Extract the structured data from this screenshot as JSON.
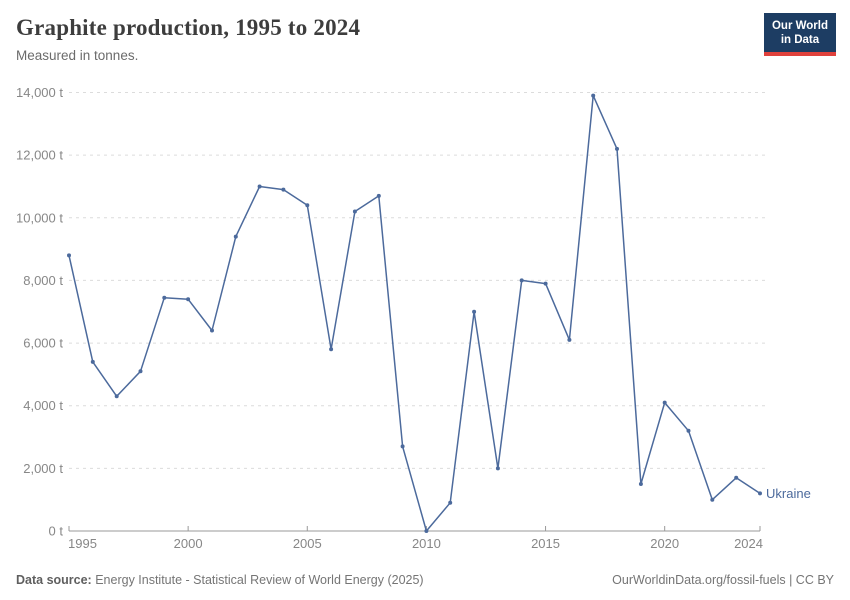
{
  "header": {
    "title": "Graphite production, 1995 to 2024",
    "subtitle": "Measured in tonnes.",
    "logo": {
      "line1": "Our World",
      "line2": "in Data"
    }
  },
  "chart_data": {
    "type": "line",
    "title": "Graphite production, 1995 to 2024",
    "ylabel": "tonnes",
    "xlabel": "",
    "unit": "t",
    "xlim": [
      1995,
      2024
    ],
    "ylim": [
      0,
      14000
    ],
    "grid": "horizontal-dashed",
    "legend_position": "end-of-line",
    "series": [
      {
        "name": "Ukraine",
        "color": "#4C6A9C",
        "x": [
          1995,
          1996,
          1997,
          1998,
          1999,
          2000,
          2001,
          2002,
          2003,
          2004,
          2005,
          2006,
          2007,
          2008,
          2009,
          2010,
          2011,
          2012,
          2013,
          2014,
          2015,
          2016,
          2017,
          2018,
          2019,
          2020,
          2021,
          2022,
          2023,
          2024
        ],
        "values": [
          8800,
          5400,
          4300,
          5100,
          7450,
          7400,
          6400,
          9400,
          11000,
          10900,
          10400,
          5800,
          10200,
          10700,
          2700,
          0,
          900,
          7000,
          2000,
          8000,
          7900,
          6100,
          13900,
          12200,
          1500,
          4100,
          3200,
          1000,
          1700,
          1200
        ]
      }
    ],
    "x_ticks": [
      {
        "value": 1995,
        "label": "1995"
      },
      {
        "value": 2000,
        "label": "2000"
      },
      {
        "value": 2005,
        "label": "2005"
      },
      {
        "value": 2010,
        "label": "2010"
      },
      {
        "value": 2015,
        "label": "2015"
      },
      {
        "value": 2020,
        "label": "2020"
      },
      {
        "value": 2024,
        "label": "2024"
      }
    ],
    "y_ticks": [
      {
        "value": 0,
        "label": "0 t"
      },
      {
        "value": 2000,
        "label": "2,000 t"
      },
      {
        "value": 4000,
        "label": "4,000 t"
      },
      {
        "value": 6000,
        "label": "6,000 t"
      },
      {
        "value": 8000,
        "label": "8,000 t"
      },
      {
        "value": 10000,
        "label": "10,000 t"
      },
      {
        "value": 12000,
        "label": "12,000 t"
      },
      {
        "value": 14000,
        "label": "14,000 t"
      }
    ]
  },
  "footer": {
    "source_label": "Data source:",
    "source_text": " Energy Institute - Statistical Review of World Energy (2025)",
    "link_text": "OurWorldinData.org/fossil-fuels | CC BY"
  },
  "colors": {
    "line": "#4C6A9C",
    "gridline": "#dcdcdc",
    "axis": "#999999",
    "tick_label": "#878787",
    "title": "#3d3d3d",
    "subtitle": "#6b6b6b",
    "footer": "#757575",
    "logo_bg": "#1d3d63",
    "logo_red": "#e0413c",
    "logo_text": "#ffffff"
  }
}
